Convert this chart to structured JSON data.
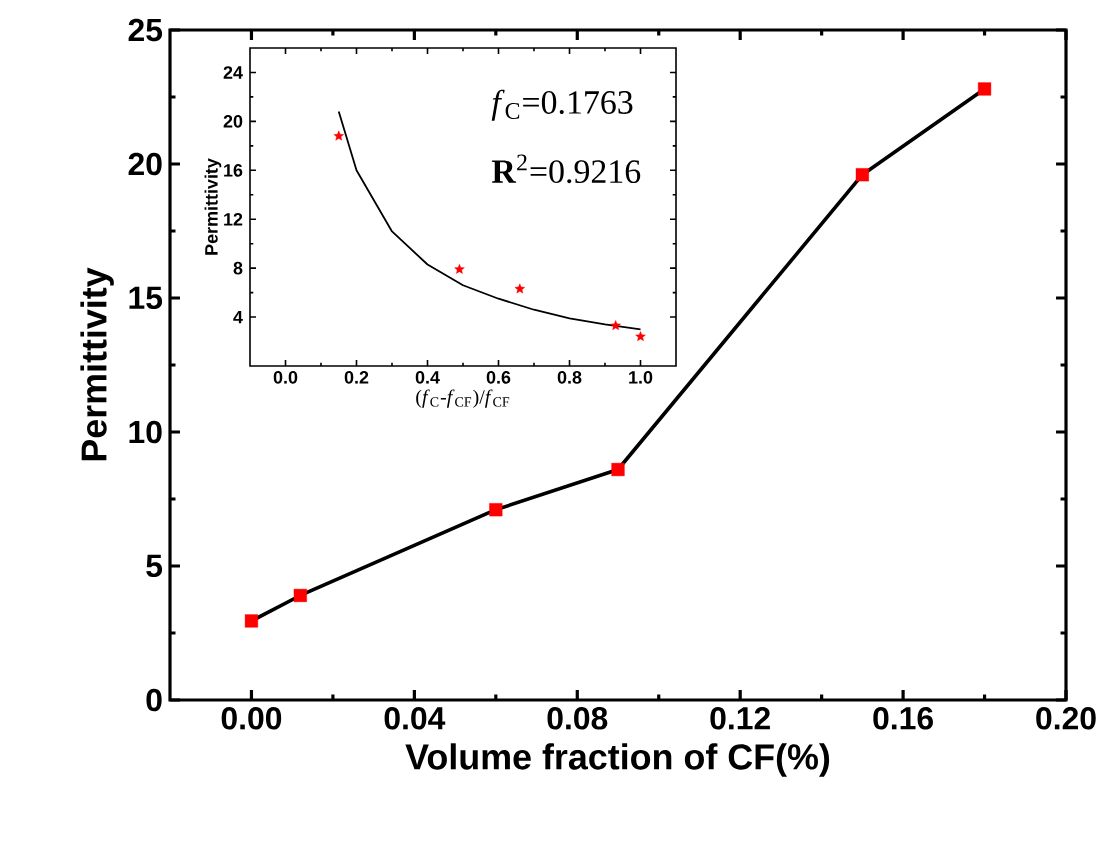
{
  "chart_data": [
    {
      "type": "line",
      "xlabel": "Volume fraction of CF(%)",
      "ylabel": "Permittivity",
      "xlim": [
        -0.02,
        0.2
      ],
      "ylim": [
        0,
        25
      ],
      "xticks": [
        {
          "value": 0,
          "label": "0.00"
        },
        0.04,
        0.08,
        0.12,
        0.16,
        {
          "value": 0.2,
          "label": "0.20"
        }
      ],
      "yticks": [
        0,
        5,
        10,
        15,
        20,
        25
      ],
      "marker": "square",
      "x": [
        0,
        0.012,
        0.06,
        0.09,
        0.15,
        0.18
      ],
      "series": [
        {
          "color": "#ff0000",
          "values": [
            2.95,
            3.9,
            7.1,
            8.6,
            19.6,
            22.8
          ]
        }
      ]
    },
    {
      "type": "scatter",
      "xlabel": "(*f*$_{C}$-*f*$_{CF}$)/*f*$_{CF}$",
      "ylabel": "Permittivity",
      "xlim": [
        -0.1,
        1.1
      ],
      "ylim": [
        0,
        26
      ],
      "xticks": [
        {
          "value": 0,
          "label": "0.0"
        },
        0.2,
        0.4,
        0.6,
        0.8,
        {
          "value": 1,
          "label": "1.0"
        }
      ],
      "yticks": [
        4,
        8,
        12,
        16,
        20,
        24
      ],
      "marker": "star",
      "annotations": [
        "*f*$_{C}$=0.1763",
        "**R**$^{2}$=0.9216"
      ],
      "x": [
        0.15,
        0.49,
        0.66,
        0.93,
        1.0
      ],
      "series": [
        {
          "color": "#ff0000",
          "values": [
            18.8,
            7.9,
            6.3,
            3.3,
            2.4
          ]
        },
        {
          "type": "line",
          "marker": "none",
          "color": "#000000",
          "x": [
            0.15,
            0.2,
            0.3,
            0.4,
            0.5,
            0.6,
            0.7,
            0.8,
            0.9,
            1.0
          ],
          "values": [
            20.8,
            16,
            11,
            8.3,
            6.6,
            5.5,
            4.6,
            3.9,
            3.4,
            3.0
          ]
        }
      ]
    }
  ]
}
